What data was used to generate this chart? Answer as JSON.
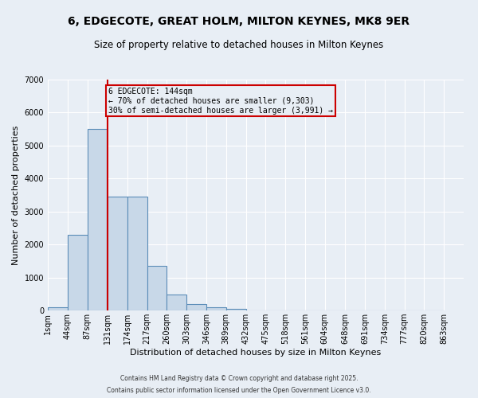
{
  "title": "6, EDGECOTE, GREAT HOLM, MILTON KEYNES, MK8 9ER",
  "subtitle": "Size of property relative to detached houses in Milton Keynes",
  "xlabel": "Distribution of detached houses by size in Milton Keynes",
  "ylabel": "Number of detached properties",
  "bar_color": "#c8d8e8",
  "bar_edge_color": "#5b8db8",
  "bin_edges": [
    1,
    44,
    87,
    131,
    174,
    217,
    260,
    303,
    346,
    389,
    432,
    475,
    518,
    561,
    604,
    648,
    691,
    734,
    777,
    820,
    863
  ],
  "bar_heights": [
    100,
    2300,
    5500,
    3450,
    3450,
    1350,
    480,
    200,
    100,
    50,
    0,
    0,
    0,
    0,
    0,
    0,
    0,
    0,
    0,
    0
  ],
  "tick_labels": [
    "1sqm",
    "44sqm",
    "87sqm",
    "131sqm",
    "174sqm",
    "217sqm",
    "260sqm",
    "303sqm",
    "346sqm",
    "389sqm",
    "432sqm",
    "475sqm",
    "518sqm",
    "561sqm",
    "604sqm",
    "648sqm",
    "691sqm",
    "734sqm",
    "777sqm",
    "820sqm",
    "863sqm"
  ],
  "vline_x": 131,
  "vline_color": "#cc0000",
  "annotation_text": "6 EDGECOTE: 144sqm\n← 70% of detached houses are smaller (9,303)\n30% of semi-detached houses are larger (3,991) →",
  "annotation_box_color": "#cc0000",
  "ylim": [
    0,
    7000
  ],
  "yticks": [
    0,
    1000,
    2000,
    3000,
    4000,
    5000,
    6000,
    7000
  ],
  "bg_color": "#e8eef5",
  "plot_bg_color": "#e8eef5",
  "footer_line1": "Contains HM Land Registry data © Crown copyright and database right 2025.",
  "footer_line2": "Contains public sector information licensed under the Open Government Licence v3.0.",
  "grid_color": "#ffffff",
  "title_fontsize": 10,
  "subtitle_fontsize": 8.5,
  "tick_fontsize": 7,
  "ylabel_fontsize": 8,
  "xlabel_fontsize": 8,
  "footer_fontsize": 5.5
}
